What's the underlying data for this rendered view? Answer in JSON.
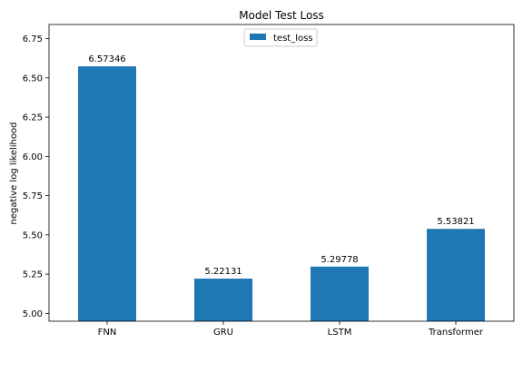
{
  "chart_data": {
    "type": "bar",
    "title": "Model Test Loss",
    "xlabel": "",
    "ylabel": "negative log likelihood",
    "categories": [
      "FNN",
      "GRU",
      "LSTM",
      "Transformer"
    ],
    "series": [
      {
        "name": "test_loss",
        "values": [
          6.57346,
          5.22131,
          5.29778,
          5.53821
        ],
        "labels": [
          "6.57346",
          "5.22131",
          "5.29778",
          "5.53821"
        ],
        "color": "#1f77b4"
      }
    ],
    "ylim": [
      4.95,
      6.84
    ],
    "yticks": [
      5.0,
      5.25,
      5.5,
      5.75,
      6.0,
      6.25,
      6.5,
      6.75
    ],
    "ytick_labels": [
      "5.00",
      "5.25",
      "5.50",
      "5.75",
      "6.00",
      "6.25",
      "6.50",
      "6.75"
    ],
    "grid": false,
    "legend": "upper center"
  }
}
